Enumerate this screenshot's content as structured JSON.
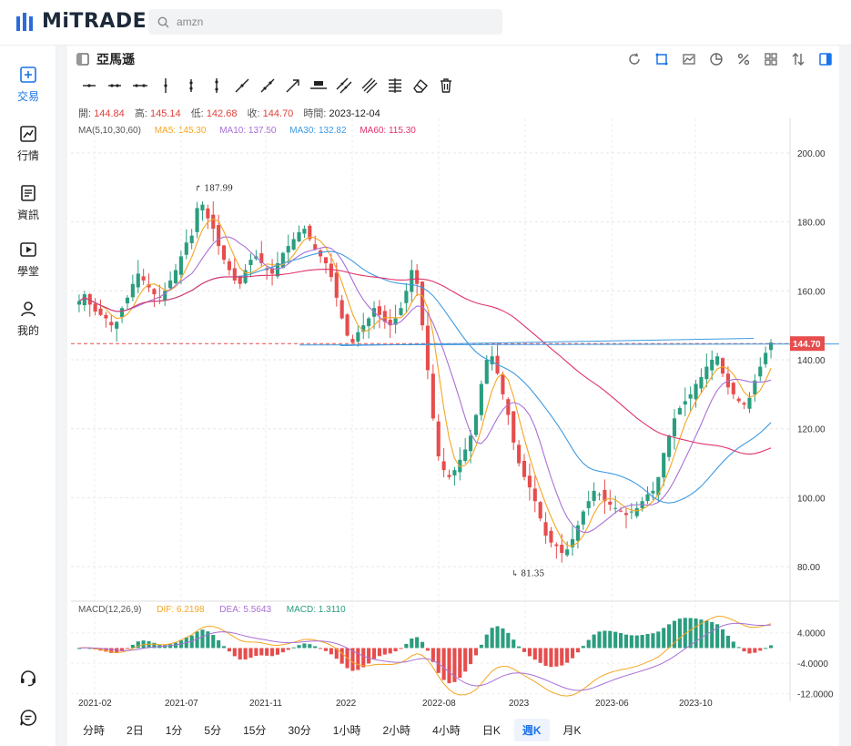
{
  "app": {
    "logo_text": "MiTRADE"
  },
  "search": {
    "value": "amzn"
  },
  "sidebar": {
    "items": [
      {
        "label": "交易",
        "icon": "plus-square-icon",
        "active": true
      },
      {
        "label": "行情",
        "icon": "line-chart-icon",
        "active": false
      },
      {
        "label": "資訊",
        "icon": "news-icon",
        "active": false
      },
      {
        "label": "學堂",
        "icon": "video-play-icon",
        "active": false
      },
      {
        "label": "我的",
        "icon": "user-icon",
        "active": false
      }
    ],
    "bottom_icons": [
      "headset-icon",
      "chat-icon"
    ]
  },
  "header": {
    "title": "亞馬遜",
    "right_tools": [
      "refresh-icon",
      "crop-icon",
      "indicator-icon",
      "pie-icon",
      "percent-icon",
      "grid-icon",
      "sort-icon",
      "panel-toggle-icon"
    ]
  },
  "drawing_tools": [
    "segment-icon",
    "ray-icon",
    "extended-line-icon",
    "vertical-line-icon",
    "vertical-segment-icon",
    "vertical-ray-icon",
    "trend-line-icon",
    "trend-ray-icon",
    "arrow-line-icon",
    "price-line-icon",
    "parallel-channel-icon",
    "multi-channel-icon",
    "fib-icon",
    "eraser-icon",
    "trash-icon"
  ],
  "ohlc": {
    "open_label": "開:",
    "open": "144.84",
    "high_label": "高:",
    "high": "145.14",
    "low_label": "低:",
    "low": "142.68",
    "close_label": "收:",
    "close": "144.70",
    "time_label": "時間:",
    "time": "2023-12-04"
  },
  "ma": {
    "title": "MA(5,10,30,60)",
    "ma5": "MA5: 145.30",
    "ma10": "MA10: 137.50",
    "ma30": "MA30: 132.82",
    "ma60": "MA60: 115.30"
  },
  "macd": {
    "title": "MACD(12,26,9)",
    "dif": "DIF: 6.2198",
    "dea": "DEA: 5.5643",
    "macd": "MACD: 1.3110"
  },
  "colors": {
    "up": "#2a9d7f",
    "down": "#e64d4d",
    "ma5": "#f5a623",
    "ma10": "#a970d6",
    "ma30": "#3f9ae0",
    "ma60": "#e0336b",
    "accent": "#1a73e8"
  },
  "periods": [
    "分時",
    "2日",
    "1分",
    "5分",
    "15分",
    "30分",
    "1小時",
    "2小時",
    "4小時",
    "日K",
    "週K",
    "月K"
  ],
  "active_period": "週K",
  "chart_data": {
    "type": "candlestick",
    "ylim": [
      70,
      210
    ],
    "y_ticks": [
      "200.00",
      "180.00",
      "160.00",
      "140.00",
      "120.00",
      "100.00",
      "80.00"
    ],
    "x_ticks": [
      "2021-02",
      "2021-07",
      "2021-11",
      "2022",
      "2022-08",
      "2023",
      "2023-06",
      "2023-10"
    ],
    "current_price": "144.70",
    "high_label": "187.99",
    "low_label": "81.35",
    "macd_ticks": [
      "4.0000",
      "-4.0000",
      "-12.0000"
    ],
    "close_series": [
      157,
      159,
      156,
      154,
      153,
      152,
      150,
      151,
      155,
      158,
      162,
      165,
      163,
      161,
      159,
      158,
      160,
      163,
      166,
      170,
      174,
      176,
      184,
      185,
      181,
      178,
      173,
      169,
      166,
      163,
      162,
      166,
      169,
      170,
      168,
      166,
      165,
      168,
      171,
      173,
      175,
      177,
      178,
      175,
      172,
      170,
      168,
      164,
      158,
      152,
      147,
      145,
      148,
      150,
      152,
      155,
      153,
      151,
      150,
      152,
      155,
      160,
      166,
      162,
      150,
      137,
      123,
      112,
      108,
      106,
      108,
      111,
      114,
      118,
      124,
      133,
      140,
      141,
      136,
      130,
      124,
      116,
      110,
      106,
      103,
      99,
      94,
      89,
      87,
      86,
      84,
      85,
      88,
      92,
      96,
      99,
      102,
      101,
      99,
      98,
      97,
      96,
      95,
      96,
      97,
      99,
      101,
      102,
      106,
      113,
      118,
      123,
      126,
      128,
      130,
      133,
      135,
      138,
      140,
      141,
      136,
      132,
      130,
      128,
      127,
      129,
      134,
      138,
      142,
      145
    ]
  }
}
